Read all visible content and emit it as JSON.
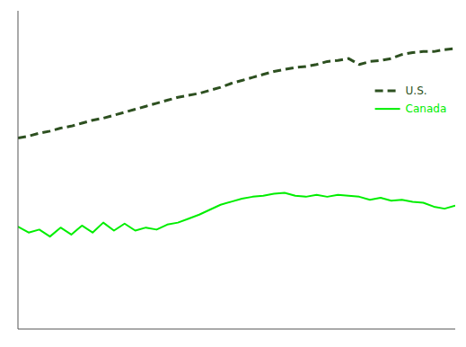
{
  "chart_data": {
    "type": "line",
    "x": [
      1976,
      1977,
      1978,
      1979,
      1980,
      1981,
      1982,
      1983,
      1984,
      1985,
      1986,
      1987,
      1988,
      1989,
      1990,
      1991,
      1992,
      1993,
      1994,
      1995,
      1996,
      1997,
      1998,
      1999,
      2000,
      2001,
      2002,
      2003,
      2004,
      2005,
      2006,
      2007,
      2008,
      2009,
      2010,
      2011,
      2012,
      2013,
      2014,
      2015,
      2016,
      2017
    ],
    "series": [
      {
        "name": "U.S.",
        "color": "#2d5020",
        "line_style": "dashed",
        "values": [
          0.392,
          0.394,
          0.397,
          0.399,
          0.402,
          0.404,
          0.407,
          0.41,
          0.412,
          0.415,
          0.418,
          0.421,
          0.424,
          0.427,
          0.43,
          0.433,
          0.435,
          0.437,
          0.44,
          0.443,
          0.447,
          0.45,
          0.453,
          0.456,
          0.459,
          0.461,
          0.463,
          0.464,
          0.466,
          0.469,
          0.47,
          0.472,
          0.466,
          0.469,
          0.47,
          0.472,
          0.476,
          0.478,
          0.479,
          0.479,
          0.481,
          0.482
        ]
      },
      {
        "name": "Canada",
        "color": "#00ee00",
        "line_style": "solid",
        "values": [
          0.303,
          0.297,
          0.3,
          0.293,
          0.302,
          0.295,
          0.304,
          0.297,
          0.307,
          0.299,
          0.306,
          0.299,
          0.302,
          0.3,
          0.305,
          0.307,
          0.311,
          0.315,
          0.32,
          0.325,
          0.328,
          0.331,
          0.333,
          0.334,
          0.336,
          0.337,
          0.334,
          0.333,
          0.335,
          0.333,
          0.335,
          0.334,
          0.333,
          0.33,
          0.332,
          0.329,
          0.33,
          0.328,
          0.327,
          0.323,
          0.321,
          0.324
        ]
      }
    ],
    "xlim": [
      1976,
      2017
    ],
    "ylim": [
      0.2,
      0.52
    ],
    "tick_labels": false,
    "grid": false,
    "legend": "right"
  }
}
